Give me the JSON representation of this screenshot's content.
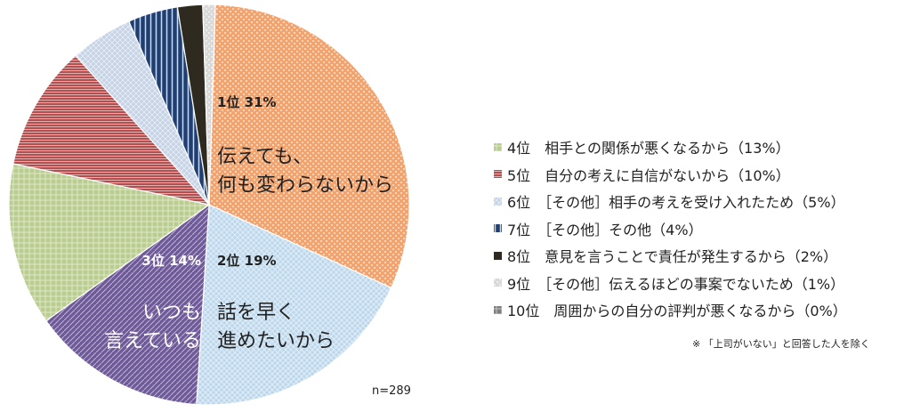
{
  "chart_data": {
    "type": "pie",
    "n_label": "n=289",
    "note": "※ 「上司がいない」と回答した人を除く",
    "series": [
      {
        "rank_label": "1位",
        "percent_label": "31%",
        "name": "伝えても、何も変わらないから",
        "value": 31,
        "color": "#f2a36e",
        "pattern": "dots"
      },
      {
        "rank_label": "2位",
        "percent_label": "19%",
        "name": "話を早く進めたいから",
        "value": 19,
        "color": "#bcd7ec",
        "pattern": "hatch"
      },
      {
        "rank_label": "3位",
        "percent_label": "14%",
        "name": "いつも言えている",
        "value": 14,
        "color": "#6e5a96",
        "pattern": "diag"
      },
      {
        "rank_label": "4位",
        "percent_label": "13%",
        "name": "相手との関係が悪くなるから",
        "value": 13,
        "color": "#b9cd8e",
        "pattern": "grid"
      },
      {
        "rank_label": "5位",
        "percent_label": "10%",
        "name": "自分の考えに自信がないから",
        "value": 10,
        "color": "#b54f4f",
        "pattern": "hlines"
      },
      {
        "rank_label": "6位",
        "percent_label": "5%",
        "name": "［その他］相手の考えを受け入れたため",
        "value": 5,
        "color": "#c3d2e4",
        "pattern": "hatch"
      },
      {
        "rank_label": "7位",
        "percent_label": "4%",
        "name": "［その他］その他",
        "value": 4,
        "color": "#1f3f73",
        "pattern": "vlines"
      },
      {
        "rank_label": "8位",
        "percent_label": "2%",
        "name": "意見を言うことで責任が発生するから",
        "value": 2,
        "color": "#2f2a1f",
        "pattern": "solid"
      },
      {
        "rank_label": "9位",
        "percent_label": "1%",
        "name": "［その他］伝えるほどの事案でないため",
        "value": 1,
        "color": "#d9d9d9",
        "pattern": "dots"
      },
      {
        "rank_label": "10位",
        "percent_label": "0%",
        "name": "周囲からの自分の評判が悪くなるから",
        "value": 0,
        "color": "#7f7f7f",
        "pattern": "grid"
      }
    ],
    "slice_text": [
      {
        "index": 0,
        "rank": "1位",
        "percent": "31%",
        "lines": [
          "伝えても、",
          "何も変わらないから"
        ]
      },
      {
        "index": 1,
        "rank": "2位",
        "percent": "19%",
        "lines": [
          "話を早く",
          "進めたいから"
        ]
      },
      {
        "index": 2,
        "rank": "3位",
        "percent": "14%",
        "lines": [
          "いつも",
          "言えている"
        ]
      }
    ],
    "legend": [
      {
        "index": 3,
        "text": "4位　相手との関係が悪くなるから（13%）"
      },
      {
        "index": 4,
        "text": "5位　自分の考えに自信がないから（10%）"
      },
      {
        "index": 5,
        "text": "6位　［その他］相手の考えを受け入れたため（5%）"
      },
      {
        "index": 6,
        "text": "7位　［その他］その他（4%）"
      },
      {
        "index": 7,
        "text": "8位　意見を言うことで責任が発生するから（2%）"
      },
      {
        "index": 8,
        "text": "9位　［その他］伝えるほどの事案でないため（1%）"
      },
      {
        "index": 9,
        "text": "10位　周囲からの自分の評判が悪くなるから（0%）"
      }
    ]
  }
}
